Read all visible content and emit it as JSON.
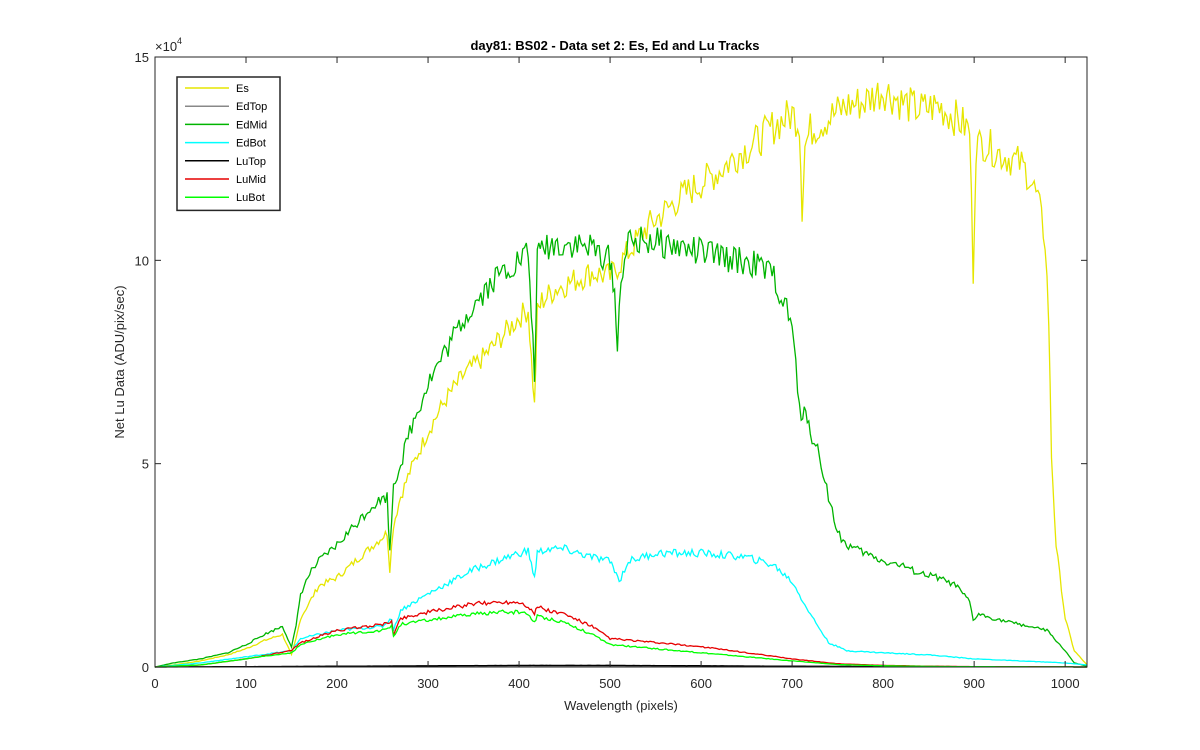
{
  "chart_data": {
    "type": "line",
    "title": "day81: BS02 - Data set 2: Es, Ed and Lu Tracks",
    "xlabel": "Wavelength (pixels)",
    "ylabel": "Net Lu Data (ADU/pix/sec)",
    "y_multiplier_label": "×10",
    "y_multiplier_exponent": "4",
    "xlim": [
      0,
      1024
    ],
    "ylim": [
      0,
      15
    ],
    "x_ticks": [
      0,
      100,
      200,
      300,
      400,
      500,
      600,
      700,
      800,
      900,
      1000
    ],
    "x_tick_labels": [
      "0",
      "100",
      "200",
      "300",
      "400",
      "500",
      "600",
      "700",
      "800",
      "900",
      "1000"
    ],
    "y_ticks": [
      0,
      5,
      10,
      15
    ],
    "y_tick_labels": [
      "0",
      "5",
      "10",
      "15"
    ],
    "grid": false,
    "legend_position": "top-left",
    "series": [
      {
        "name": "Es",
        "color": "#e6e600",
        "x": [
          0,
          20,
          50,
          80,
          100,
          120,
          140,
          150,
          155,
          160,
          170,
          180,
          200,
          220,
          240,
          255,
          258,
          262,
          270,
          280,
          300,
          320,
          340,
          360,
          380,
          400,
          410,
          417,
          420,
          425,
          440,
          460,
          480,
          500,
          520,
          540,
          560,
          580,
          600,
          620,
          640,
          660,
          680,
          700,
          708,
          711,
          714,
          720,
          740,
          760,
          780,
          800,
          820,
          840,
          860,
          880,
          895,
          899,
          902,
          910,
          930,
          950,
          960,
          970,
          978,
          982,
          985,
          990,
          1000,
          1010,
          1024
        ],
        "y": [
          0,
          0.05,
          0.15,
          0.3,
          0.45,
          0.65,
          0.8,
          0.3,
          0.7,
          1.2,
          1.6,
          2.0,
          2.2,
          2.6,
          3.0,
          3.3,
          2.4,
          3.5,
          4.2,
          4.8,
          5.8,
          6.6,
          7.2,
          7.6,
          8.1,
          8.6,
          8.8,
          6.4,
          8.7,
          9.0,
          9.3,
          9.5,
          9.7,
          9.6,
          10.2,
          10.8,
          11.2,
          11.6,
          11.9,
          12.2,
          12.6,
          12.9,
          13.3,
          13.6,
          13.4,
          11.3,
          12.8,
          13.2,
          13.5,
          13.8,
          13.9,
          14.2,
          13.9,
          13.7,
          13.8,
          13.5,
          13.2,
          9.7,
          12.8,
          12.9,
          12.6,
          12.4,
          12.1,
          11.5,
          10.5,
          8.5,
          5.2,
          3.0,
          1.2,
          0.4,
          0.05
        ]
      },
      {
        "name": "EdTop",
        "color": "#888888",
        "x": [
          0,
          100,
          200,
          300,
          400,
          500,
          600,
          700,
          800,
          900,
          1000,
          1024
        ],
        "y": [
          0,
          0.005,
          0.01,
          0.02,
          0.03,
          0.03,
          0.025,
          0.02,
          0.01,
          0.005,
          0.002,
          0
        ]
      },
      {
        "name": "EdMid",
        "color": "#00b400",
        "x": [
          0,
          20,
          50,
          80,
          100,
          120,
          140,
          150,
          155,
          160,
          170,
          180,
          200,
          220,
          240,
          255,
          258,
          262,
          270,
          280,
          300,
          320,
          340,
          360,
          380,
          400,
          410,
          417,
          420,
          425,
          440,
          460,
          480,
          500,
          505,
          508,
          512,
          520,
          540,
          560,
          580,
          600,
          620,
          640,
          660,
          680,
          700,
          710,
          715,
          720,
          730,
          740,
          750,
          760,
          780,
          800,
          820,
          840,
          860,
          880,
          895,
          899,
          905,
          920,
          940,
          960,
          980,
          1000,
          1010,
          1024
        ],
        "y": [
          0,
          0.1,
          0.2,
          0.35,
          0.55,
          0.8,
          1.0,
          0.5,
          1.0,
          1.8,
          2.3,
          2.6,
          3.0,
          3.5,
          4.0,
          4.2,
          2.8,
          4.5,
          5.0,
          5.8,
          7.0,
          7.8,
          8.6,
          9.2,
          9.7,
          10.0,
          10.2,
          7.2,
          10.0,
          10.3,
          10.4,
          10.4,
          10.3,
          10.0,
          9.3,
          7.7,
          9.7,
          10.4,
          10.5,
          10.4,
          10.3,
          10.2,
          10.1,
          10.0,
          9.9,
          9.6,
          8.4,
          5.9,
          6.4,
          5.8,
          5.2,
          4.2,
          3.3,
          3.0,
          2.8,
          2.6,
          2.5,
          2.3,
          2.2,
          2.0,
          1.6,
          1.15,
          1.3,
          1.2,
          1.1,
          1.0,
          0.9,
          0.4,
          0.1,
          0.02
        ]
      },
      {
        "name": "EdBot",
        "color": "#00ffff",
        "x": [
          0,
          50,
          100,
          150,
          160,
          200,
          250,
          260,
          262,
          270,
          300,
          350,
          400,
          410,
          417,
          420,
          430,
          450,
          480,
          500,
          505,
          510,
          520,
          550,
          600,
          650,
          680,
          700,
          720,
          740,
          760,
          800,
          850,
          900,
          950,
          1000,
          1024
        ],
        "y": [
          0,
          0.1,
          0.25,
          0.4,
          0.7,
          0.9,
          1.0,
          1.2,
          0.9,
          1.4,
          1.8,
          2.4,
          2.8,
          2.85,
          2.2,
          2.8,
          2.9,
          2.9,
          2.7,
          2.6,
          2.4,
          2.1,
          2.6,
          2.8,
          2.8,
          2.7,
          2.5,
          2.1,
          1.3,
          0.6,
          0.4,
          0.35,
          0.3,
          0.2,
          0.15,
          0.1,
          0.05
        ]
      },
      {
        "name": "LuTop",
        "color": "#000000",
        "x": [
          0,
          100,
          200,
          300,
          400,
          500,
          600,
          700,
          800,
          900,
          1000,
          1024
        ],
        "y": [
          0,
          0.01,
          0.02,
          0.03,
          0.04,
          0.04,
          0.03,
          0.02,
          0.01,
          0.005,
          0.002,
          0
        ]
      },
      {
        "name": "LuMid",
        "color": "#e60000",
        "x": [
          0,
          50,
          100,
          150,
          160,
          200,
          250,
          260,
          262,
          270,
          300,
          350,
          380,
          400,
          410,
          417,
          420,
          430,
          450,
          480,
          500,
          550,
          600,
          650,
          700,
          750,
          800,
          850,
          900,
          950,
          1000,
          1024
        ],
        "y": [
          0,
          0.05,
          0.2,
          0.4,
          0.6,
          0.9,
          1.05,
          1.1,
          0.8,
          1.2,
          1.35,
          1.55,
          1.6,
          1.6,
          1.5,
          1.3,
          1.5,
          1.4,
          1.3,
          1.0,
          0.7,
          0.6,
          0.5,
          0.35,
          0.2,
          0.08,
          0.04,
          0.02,
          0.01,
          0.005,
          0.002,
          0
        ]
      },
      {
        "name": "LuBot",
        "color": "#00ff00",
        "x": [
          0,
          50,
          100,
          150,
          160,
          200,
          250,
          260,
          262,
          270,
          300,
          350,
          380,
          400,
          410,
          417,
          420,
          430,
          450,
          480,
          500,
          550,
          600,
          650,
          700,
          750,
          800,
          850,
          900,
          950,
          1000,
          1024
        ],
        "y": [
          0,
          0.05,
          0.2,
          0.35,
          0.55,
          0.8,
          0.9,
          1.0,
          0.75,
          1.05,
          1.15,
          1.3,
          1.35,
          1.35,
          1.3,
          1.1,
          1.25,
          1.2,
          1.1,
          0.8,
          0.55,
          0.45,
          0.35,
          0.25,
          0.15,
          0.06,
          0.03,
          0.015,
          0.008,
          0.004,
          0.002,
          0
        ]
      }
    ]
  }
}
